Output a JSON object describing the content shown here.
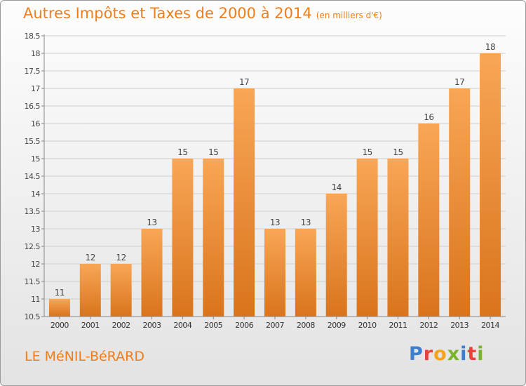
{
  "header": {
    "title": "Autres Impôts et Taxes de 2000 à 2014",
    "unit": "(en milliers d'€)"
  },
  "footer": {
    "commune": "LE MéNIL-BéRARD"
  },
  "logo": {
    "letters": [
      "P",
      "r",
      "o",
      "x",
      "i",
      "t",
      "i"
    ],
    "colors": [
      "#3b7fd0",
      "#e6433b",
      "#f7a21b",
      "#7ab32e",
      "#3b7fd0",
      "#e6433b",
      "#7ab32e"
    ]
  },
  "colors": {
    "bar_light": "#f8a656",
    "bar_dark": "#d9741c",
    "title": "#f07d18"
  },
  "chart_data": {
    "type": "bar",
    "categories": [
      "2000",
      "2001",
      "2002",
      "2003",
      "2004",
      "2005",
      "2006",
      "2007",
      "2008",
      "2009",
      "2010",
      "2011",
      "2012",
      "2013",
      "2014"
    ],
    "values": [
      11,
      12,
      12,
      13,
      15,
      15,
      17,
      13,
      13,
      14,
      15,
      15,
      16,
      17,
      18
    ],
    "data_labels": [
      "11",
      "12",
      "12",
      "13",
      "15",
      "15",
      "17",
      "13",
      "13",
      "14",
      "15",
      "15",
      "16",
      "17",
      "18"
    ],
    "ylim": [
      10.5,
      18.5
    ],
    "yticks": [
      "10.5",
      "11",
      "11.5",
      "12",
      "12.5",
      "13",
      "13.5",
      "14",
      "14.5",
      "15",
      "15.5",
      "16",
      "16.5",
      "17",
      "17.5",
      "18",
      "18.5"
    ],
    "grid": true,
    "xlabel": "",
    "ylabel": ""
  }
}
